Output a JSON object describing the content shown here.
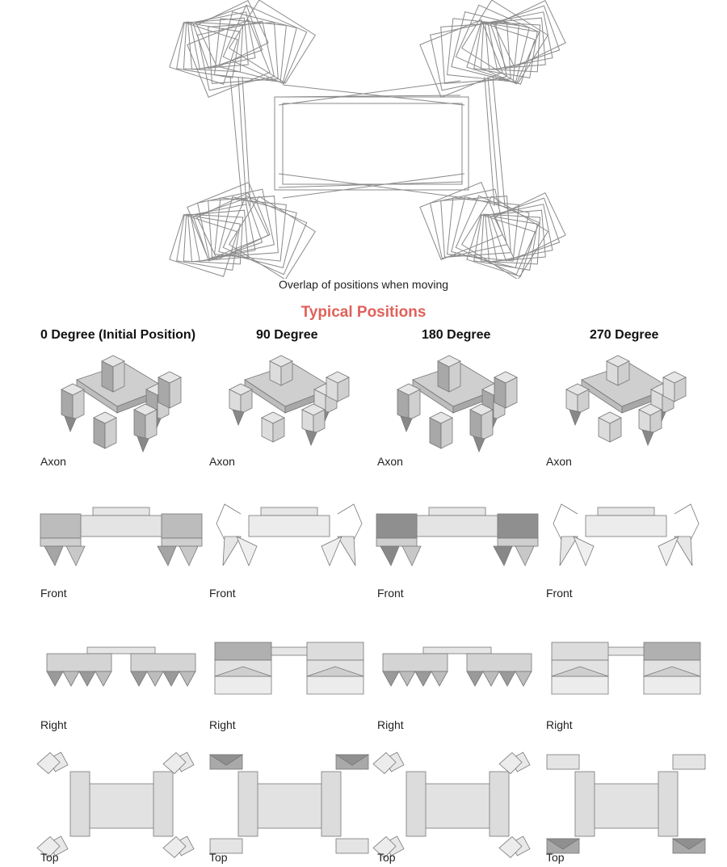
{
  "overlap_caption": "Overlap of positions when moving",
  "section_title": "Typical Positions",
  "accent_color": "#e0615a",
  "columns": [
    {
      "heading": "0 Degree (Initial Position)"
    },
    {
      "heading": "90 Degree"
    },
    {
      "heading": "180 Degree"
    },
    {
      "heading": "270 Degree"
    }
  ],
  "views": [
    "Axon",
    "Front",
    "Right",
    "Top"
  ]
}
